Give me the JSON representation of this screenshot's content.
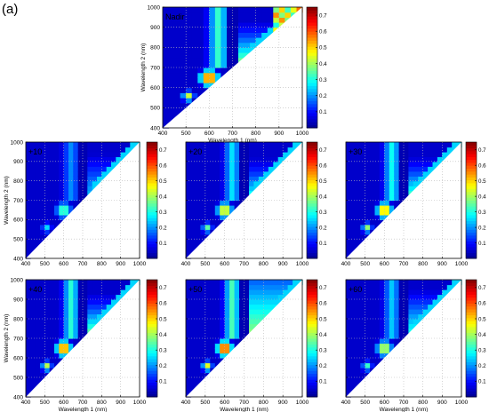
{
  "figure_label": "(a)",
  "colors": {
    "colormap": [
      "#00008f",
      "#0000ff",
      "#0080ff",
      "#00ffff",
      "#80ff80",
      "#ffff00",
      "#ff8000",
      "#ff0000",
      "#800000"
    ],
    "grid": "#b8b8b8"
  },
  "chart_data": [
    {
      "type": "heatmap",
      "title": "Nadir",
      "xlabel": "Wavelength 1 (nm)",
      "ylabel": "Wavelength 2 (nm)",
      "xlim": [
        400,
        1000
      ],
      "ylim": [
        400,
        1000
      ],
      "xticks": [
        "400",
        "500",
        "600",
        "700",
        "800",
        "900",
        "1000"
      ],
      "yticks": [
        "400",
        "500",
        "600",
        "700",
        "800",
        "900",
        "1000"
      ],
      "colorbar_ticks": [
        "0.1",
        "0.2",
        "0.3",
        "0.4",
        "0.5",
        "0.6",
        "0.7"
      ],
      "colorbar_range": [
        0,
        0.75
      ],
      "region": "upper-left triangle (Wavelength 2 > Wavelength 1)",
      "grid": true,
      "variant": "nadir"
    },
    {
      "type": "heatmap",
      "title": "+10",
      "xlabel": "",
      "ylabel": "Wavelength 2 (nm)",
      "xlim": [
        400,
        1000
      ],
      "ylim": [
        400,
        1000
      ],
      "xticks": [
        "400",
        "500",
        "600",
        "700",
        "800",
        "900",
        "1000"
      ],
      "yticks": [
        "400",
        "500",
        "600",
        "700",
        "800",
        "900",
        "1000"
      ],
      "colorbar_ticks": [
        "0.1",
        "0.2",
        "0.3",
        "0.4",
        "0.5",
        "0.6",
        "0.7"
      ],
      "colorbar_range": [
        0,
        0.75
      ],
      "grid": true,
      "variant": "p10"
    },
    {
      "type": "heatmap",
      "title": "+20",
      "xlabel": "",
      "ylabel": "",
      "xlim": [
        400,
        1000
      ],
      "ylim": [
        400,
        1000
      ],
      "xticks": [
        "400",
        "500",
        "600",
        "700",
        "800",
        "900",
        "1000"
      ],
      "yticks": [],
      "colorbar_ticks": [
        "0.1",
        "0.2",
        "0.3",
        "0.4",
        "0.5",
        "0.6",
        "0.7"
      ],
      "colorbar_range": [
        0,
        0.75
      ],
      "grid": true,
      "variant": "p20"
    },
    {
      "type": "heatmap",
      "title": "+30",
      "xlabel": "",
      "ylabel": "",
      "xlim": [
        400,
        1000
      ],
      "ylim": [
        400,
        1000
      ],
      "xticks": [
        "400",
        "500",
        "600",
        "700",
        "800",
        "900",
        "1000"
      ],
      "yticks": [],
      "colorbar_ticks": [
        "0.1",
        "0.2",
        "0.3",
        "0.4",
        "0.5",
        "0.6",
        "0.7"
      ],
      "colorbar_range": [
        0,
        0.75
      ],
      "grid": true,
      "variant": "p30"
    },
    {
      "type": "heatmap",
      "title": "+40",
      "xlabel": "Wavelength 1 (nm)",
      "ylabel": "Wavelength 2 (nm)",
      "xlim": [
        400,
        1000
      ],
      "ylim": [
        400,
        1000
      ],
      "xticks": [
        "400",
        "500",
        "600",
        "700",
        "800",
        "900",
        "1000"
      ],
      "yticks": [
        "400",
        "500",
        "600",
        "700",
        "800",
        "900",
        "1000"
      ],
      "colorbar_ticks": [
        "0.1",
        "0.2",
        "0.3",
        "0.4",
        "0.5",
        "0.6",
        "0.7"
      ],
      "colorbar_range": [
        0,
        0.75
      ],
      "grid": true,
      "variant": "p40"
    },
    {
      "type": "heatmap",
      "title": "+50",
      "xlabel": "Wavelength 1 (nm)",
      "ylabel": "",
      "xlim": [
        400,
        1000
      ],
      "ylim": [
        400,
        1000
      ],
      "xticks": [
        "400",
        "500",
        "600",
        "700",
        "800",
        "900",
        "1000"
      ],
      "yticks": [],
      "colorbar_ticks": [
        "0.1",
        "0.2",
        "0.3",
        "0.4",
        "0.5",
        "0.6",
        "0.7"
      ],
      "colorbar_range": [
        0,
        0.75
      ],
      "grid": true,
      "variant": "p50"
    },
    {
      "type": "heatmap",
      "title": "+60",
      "xlabel": "Wavelength 1 (nm)",
      "ylabel": "",
      "xlim": [
        400,
        1000
      ],
      "ylim": [
        400,
        1000
      ],
      "xticks": [
        "400",
        "500",
        "600",
        "700",
        "800",
        "900",
        "1000"
      ],
      "yticks": [],
      "colorbar_ticks": [
        "0.1",
        "0.2",
        "0.3",
        "0.4",
        "0.5",
        "0.6",
        "0.7"
      ],
      "colorbar_range": [
        0,
        0.75
      ],
      "grid": true,
      "variant": "p60"
    }
  ]
}
